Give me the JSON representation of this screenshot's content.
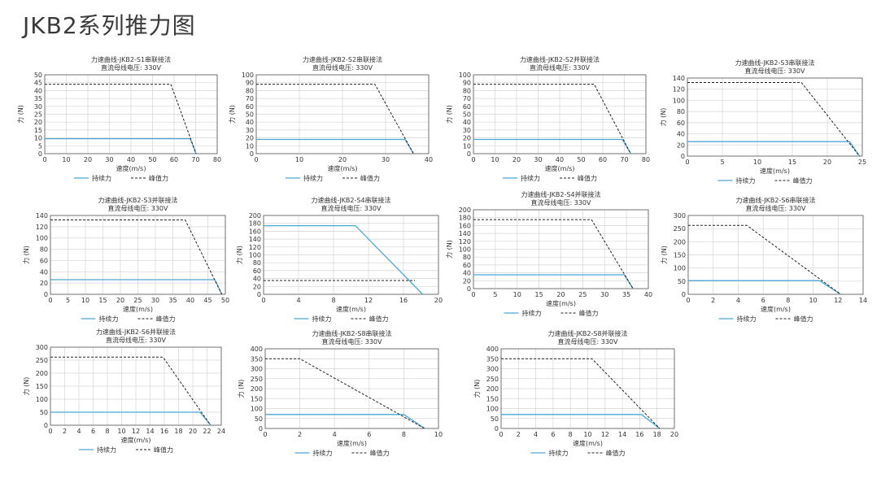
{
  "page_title": "JKB2系列推力图",
  "legend_labels": {
    "continuous": "持续力",
    "peak": "峰值力"
  },
  "colors": {
    "continuous": "#4aa8d8",
    "peak": "#222222",
    "grid": "#d4d4d4",
    "frame": "#555555"
  },
  "chart_data": [
    {
      "type": "line",
      "title": "力速曲线-JKB2-S1串联接法",
      "subtitle": "直流母线电压: 330V",
      "xlabel": "速度(m/s)",
      "ylabel": "力 (N)",
      "xlim": [
        0,
        80
      ],
      "ylim": [
        0,
        50
      ],
      "xticks": [
        0,
        10,
        20,
        30,
        40,
        50,
        60,
        70,
        80
      ],
      "yticks": [
        0,
        5,
        10,
        15,
        20,
        25,
        30,
        35,
        40,
        45,
        50
      ],
      "series": [
        {
          "name": "持续力",
          "x": [
            0,
            67.5,
            70.2
          ],
          "y": [
            9.5,
            9.5,
            0
          ]
        },
        {
          "name": "峰值力",
          "x": [
            0,
            58.5,
            70.2
          ],
          "y": [
            44,
            44,
            0
          ]
        }
      ]
    },
    {
      "type": "line",
      "title": "力速曲线-JKB2-S2串联接法",
      "subtitle": "直流母线电压: 330V",
      "xlabel": "速度(m/s)",
      "ylabel": "力 (N)",
      "xlim": [
        0,
        40
      ],
      "ylim": [
        0,
        100
      ],
      "xticks": [
        0,
        10,
        20,
        30,
        40
      ],
      "yticks": [
        0,
        10,
        20,
        30,
        40,
        50,
        60,
        70,
        80,
        90,
        100
      ],
      "series": [
        {
          "name": "持续力",
          "x": [
            0,
            34.5,
            36.5
          ],
          "y": [
            18,
            18,
            0
          ]
        },
        {
          "name": "峰值力",
          "x": [
            0,
            27.5,
            36.5
          ],
          "y": [
            88,
            88,
            0
          ]
        }
      ]
    },
    {
      "type": "line",
      "title": "力速曲线-JKB2-S2并联接法",
      "subtitle": "直流母线电压: 330V",
      "xlabel": "速度(m/s)",
      "ylabel": "力 (N)",
      "xlim": [
        0,
        80
      ],
      "ylim": [
        0,
        100
      ],
      "xticks": [
        0,
        10,
        20,
        30,
        40,
        50,
        60,
        70,
        80
      ],
      "yticks": [
        0,
        10,
        20,
        30,
        40,
        50,
        60,
        70,
        80,
        90,
        100
      ],
      "series": [
        {
          "name": "持续力",
          "x": [
            0,
            69,
            73
          ],
          "y": [
            18,
            18,
            0
          ]
        },
        {
          "name": "峰值力",
          "x": [
            0,
            56,
            73
          ],
          "y": [
            88,
            88,
            0
          ]
        }
      ]
    },
    {
      "type": "line",
      "title": "力速曲线-JKB2-S3串联接法",
      "subtitle": "直流母线电压: 330V",
      "xlabel": "速度(m/s)",
      "ylabel": "力 (N)",
      "xlim": [
        0,
        25
      ],
      "ylim": [
        0,
        140
      ],
      "xticks": [
        0,
        5,
        10,
        15,
        20,
        25
      ],
      "yticks": [
        0,
        20,
        40,
        60,
        80,
        100,
        120,
        140
      ],
      "series": [
        {
          "name": "持续力",
          "x": [
            0,
            23.2,
            24.6
          ],
          "y": [
            26,
            26,
            0
          ]
        },
        {
          "name": "峰值力",
          "x": [
            0,
            16.3,
            24.6
          ],
          "y": [
            132,
            132,
            0
          ]
        }
      ]
    },
    {
      "type": "line",
      "title": "力速曲线-JKB2-S3并联接法",
      "subtitle": "直流母线电压: 330V",
      "xlabel": "速度(m/s)",
      "ylabel": "力 (N)",
      "xlim": [
        0,
        50
      ],
      "ylim": [
        0,
        140
      ],
      "xticks": [
        0,
        5,
        10,
        15,
        20,
        25,
        30,
        35,
        40,
        45,
        50
      ],
      "yticks": [
        0,
        20,
        40,
        60,
        80,
        100,
        120,
        140
      ],
      "series": [
        {
          "name": "持续力",
          "x": [
            0,
            47,
            49
          ],
          "y": [
            26,
            26,
            0
          ]
        },
        {
          "name": "峰值力",
          "x": [
            0,
            38.5,
            49
          ],
          "y": [
            132,
            132,
            0
          ]
        }
      ]
    },
    {
      "type": "line",
      "title": "力速曲线-JKB2-S4串联接法",
      "subtitle": "直流母线电压: 330V",
      "xlabel": "速度(m/s)",
      "ylabel": "力 (N)",
      "xlim": [
        0,
        20
      ],
      "ylim": [
        0,
        200
      ],
      "xticks": [
        0,
        4,
        8,
        12,
        16,
        20
      ],
      "yticks": [
        0,
        20,
        40,
        60,
        80,
        100,
        120,
        140,
        160,
        180,
        200
      ],
      "series": [
        {
          "name": "持续力",
          "x": [
            0,
            10.5,
            18.2
          ],
          "y": [
            174,
            174,
            0
          ]
        },
        {
          "name": "峰值力",
          "x": [
            0,
            17.3
          ],
          "y": [
            35,
            35
          ]
        }
      ]
    },
    {
      "type": "line",
      "title": "力速曲线-JKB2-S4并联接法",
      "subtitle": "直流母线电压: 330V",
      "xlabel": "速度(m/s)",
      "ylabel": "力 (N)",
      "xlim": [
        0,
        40
      ],
      "ylim": [
        0,
        200
      ],
      "xticks": [
        0,
        5,
        10,
        15,
        20,
        25,
        30,
        35,
        40
      ],
      "yticks": [
        0,
        20,
        40,
        60,
        80,
        100,
        120,
        140,
        160,
        180,
        200
      ],
      "series": [
        {
          "name": "持续力",
          "x": [
            0,
            34.5,
            36.5
          ],
          "y": [
            35,
            35,
            0
          ]
        },
        {
          "name": "峰值力",
          "x": [
            0,
            27,
            36.5
          ],
          "y": [
            175,
            175,
            0
          ]
        }
      ]
    },
    {
      "type": "line",
      "title": "力速曲线-JKB2-S6串联接法",
      "subtitle": "直流母线电压: 330V",
      "xlabel": "速度(m/s)",
      "ylabel": "力 (N)",
      "xlim": [
        0,
        14
      ],
      "ylim": [
        0,
        300
      ],
      "xticks": [
        0,
        2,
        4,
        6,
        8,
        10,
        12,
        14
      ],
      "yticks": [
        0,
        50,
        100,
        150,
        200,
        250,
        300
      ],
      "series": [
        {
          "name": "持续力",
          "x": [
            0,
            10.5,
            12.2
          ],
          "y": [
            52,
            52,
            0
          ]
        },
        {
          "name": "峰值力",
          "x": [
            0,
            4.7,
            12.2
          ],
          "y": [
            262,
            262,
            0
          ]
        }
      ]
    },
    {
      "type": "line",
      "title": "力速曲线-JKB2-S6并联接法",
      "subtitle": "直流母线电压: 330V",
      "xlabel": "速度(m/s)",
      "ylabel": "力 (N)",
      "xlim": [
        0,
        24
      ],
      "ylim": [
        0,
        300
      ],
      "xticks": [
        0,
        2,
        4,
        6,
        8,
        10,
        12,
        14,
        16,
        18,
        20,
        22,
        24
      ],
      "yticks": [
        0,
        50,
        100,
        150,
        200,
        250,
        300
      ],
      "series": [
        {
          "name": "持续力",
          "x": [
            0,
            21,
            22.5
          ],
          "y": [
            50,
            50,
            0
          ]
        },
        {
          "name": "峰值力",
          "x": [
            0,
            15.8,
            22.5
          ],
          "y": [
            262,
            262,
            0
          ]
        }
      ]
    },
    {
      "type": "line",
      "title": "力速曲线-JKB2-S8串联接法",
      "subtitle": "直流母线电压: 330V",
      "xlabel": "速度(m/s)",
      "ylabel": "力 (N)",
      "xlim": [
        0,
        10
      ],
      "ylim": [
        0,
        400
      ],
      "xticks": [
        0,
        2,
        4,
        6,
        8,
        10
      ],
      "yticks": [
        0,
        50,
        100,
        150,
        200,
        250,
        300,
        350,
        400
      ],
      "series": [
        {
          "name": "持续力",
          "x": [
            0,
            8,
            9.2
          ],
          "y": [
            70,
            70,
            0
          ]
        },
        {
          "name": "峰值力",
          "x": [
            0,
            2,
            9.2
          ],
          "y": [
            350,
            350,
            0
          ]
        }
      ]
    },
    {
      "type": "line",
      "title": "力速曲线-JKB2-S8并联接法",
      "subtitle": "直流母线电压: 330V",
      "xlabel": "速度(m/s)",
      "ylabel": "力 (N)",
      "xlim": [
        0,
        20
      ],
      "ylim": [
        0,
        400
      ],
      "xticks": [
        0,
        2,
        4,
        6,
        8,
        10,
        12,
        14,
        16,
        18,
        20
      ],
      "yticks": [
        0,
        50,
        100,
        150,
        200,
        250,
        300,
        350,
        400
      ],
      "series": [
        {
          "name": "持续力",
          "x": [
            0,
            16.2,
            18.3
          ],
          "y": [
            70,
            70,
            0
          ]
        },
        {
          "name": "峰值力",
          "x": [
            0,
            10.5,
            18.3
          ],
          "y": [
            350,
            350,
            0
          ]
        }
      ]
    }
  ]
}
